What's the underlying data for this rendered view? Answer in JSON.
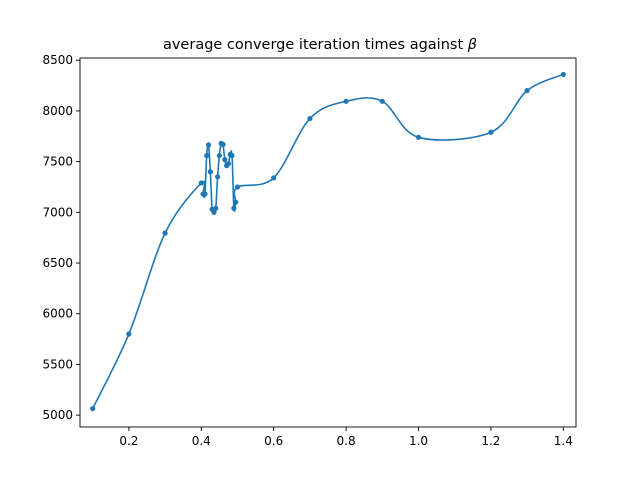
{
  "chart_data": {
    "type": "line",
    "title": "average converge iteration times against ",
    "title_symbol": "β",
    "xlabel": "",
    "ylabel": "",
    "xlim": [
      0.065,
      1.435
    ],
    "ylim": [
      4883,
      8522
    ],
    "xticks": [
      0.2,
      0.4,
      0.6,
      0.8,
      1.0,
      1.2,
      1.4
    ],
    "xtick_labels": [
      "0.2",
      "0.4",
      "0.6",
      "0.8",
      "1.0",
      "1.2",
      "1.4"
    ],
    "yticks": [
      5000,
      5500,
      6000,
      6500,
      7000,
      7500,
      8000,
      8500
    ],
    "ytick_labels": [
      "5000",
      "5500",
      "6000",
      "6500",
      "7000",
      "7500",
      "8000",
      "8500"
    ],
    "grid": false,
    "line_color": "#1f77b4",
    "series": [
      {
        "x": [
          0.1,
          0.2,
          0.3,
          0.4,
          0.405,
          0.41,
          0.415,
          0.42,
          0.425,
          0.43,
          0.435,
          0.44,
          0.445,
          0.45,
          0.455,
          0.46,
          0.465,
          0.47,
          0.475,
          0.48,
          0.485,
          0.49,
          0.495,
          0.5,
          0.6,
          0.7,
          0.8,
          0.9,
          1.0,
          1.2,
          1.3,
          1.4
        ],
        "y": [
          5065,
          5800,
          6795,
          7290,
          7180,
          7180,
          7560,
          7665,
          7400,
          7030,
          7000,
          7040,
          7350,
          7560,
          7680,
          7670,
          7520,
          7460,
          7480,
          7570,
          7560,
          7040,
          7100,
          7250,
          7340,
          7925,
          8095,
          8095,
          7740,
          7790,
          8200,
          8360
        ]
      }
    ]
  }
}
